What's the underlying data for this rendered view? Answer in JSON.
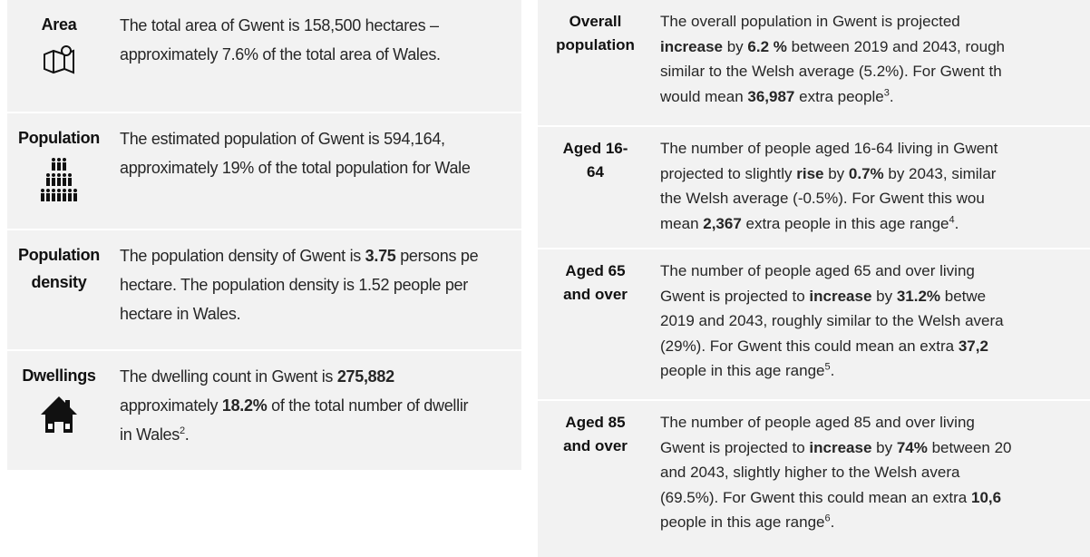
{
  "left_table": {
    "rows": [
      {
        "label": [
          "Area"
        ],
        "lines": [
          [
            "The total area of Gwent is 158,500 hectares –"
          ],
          [
            "approximately 7.6% of the total area of Wales."
          ]
        ]
      },
      {
        "label": [
          "Population"
        ],
        "lines": [
          [
            "The estimated population of Gwent is 594,164,"
          ],
          [
            "approximately 19% of the total population for Wale"
          ]
        ]
      },
      {
        "label": [
          "Population",
          "density"
        ],
        "lines": [
          [
            "The population density of Gwent is ",
            {
              "bold": "3.75"
            },
            " persons pe"
          ],
          [
            "hectare. The population density is 1.52 people per"
          ],
          [
            "hectare in Wales."
          ]
        ]
      },
      {
        "label": [
          "Dwellings"
        ],
        "lines": [
          [
            "The dwelling count in Gwent is ",
            {
              "bold": "275,882"
            }
          ],
          [
            "approximately ",
            {
              "bold": "18.2%"
            },
            " of the total number of dwellir"
          ],
          [
            "in Wales",
            {
              "sup": "2"
            },
            "."
          ]
        ]
      }
    ]
  },
  "right_table": {
    "rows": [
      {
        "label": [
          "Overall",
          "population"
        ],
        "lines": [
          [
            "The overall population in Gwent is projected"
          ],
          [
            {
              "bold": "increase"
            },
            " by ",
            {
              "bold": "6.2 %"
            },
            " between 2019 and 2043, rough"
          ],
          [
            "similar to the Welsh average (5.2%). For Gwent th"
          ],
          [
            "would mean ",
            {
              "bold": "36,987"
            },
            " extra people",
            {
              "sup": "3"
            },
            "."
          ]
        ]
      },
      {
        "label": [
          "Aged 16-",
          "64"
        ],
        "lines": [
          [
            "The number of people aged 16-64 living in Gwent"
          ],
          [
            "projected to slightly ",
            {
              "bold": "rise"
            },
            " by ",
            {
              "bold": "0.7%"
            },
            " by 2043, similar"
          ],
          [
            "the Welsh average (-0.5%). For Gwent this wou"
          ],
          [
            "mean ",
            {
              "bold": "2,367"
            },
            " extra people in this age range",
            {
              "sup": "4"
            },
            "."
          ]
        ]
      },
      {
        "label": [
          "Aged 65",
          "and over"
        ],
        "lines": [
          [
            "The number of people aged 65 and over living"
          ],
          [
            "Gwent is projected to ",
            {
              "bold": "increase"
            },
            " by ",
            {
              "bold": "31.2%"
            },
            " betwe"
          ],
          [
            "2019 and 2043, roughly similar to the Welsh avera"
          ],
          [
            "(29%). For Gwent this could mean an extra ",
            {
              "bold": "37,2"
            }
          ],
          [
            "people in this age range",
            {
              "sup": "5"
            },
            "."
          ]
        ]
      },
      {
        "label": [
          "Aged 85",
          "and over"
        ],
        "lines": [
          [
            "The number of people aged 85 and over living"
          ],
          [
            "Gwent is projected to ",
            {
              "bold": "increase"
            },
            " by ",
            {
              "bold": "74%"
            },
            " between 20"
          ],
          [
            "and 2043, slightly higher to the Welsh avera"
          ],
          [
            "(69.5%). For Gwent this could mean an extra ",
            {
              "bold": "10,6"
            }
          ],
          [
            "people in this age range",
            {
              "sup": "6"
            },
            "."
          ]
        ]
      }
    ]
  }
}
